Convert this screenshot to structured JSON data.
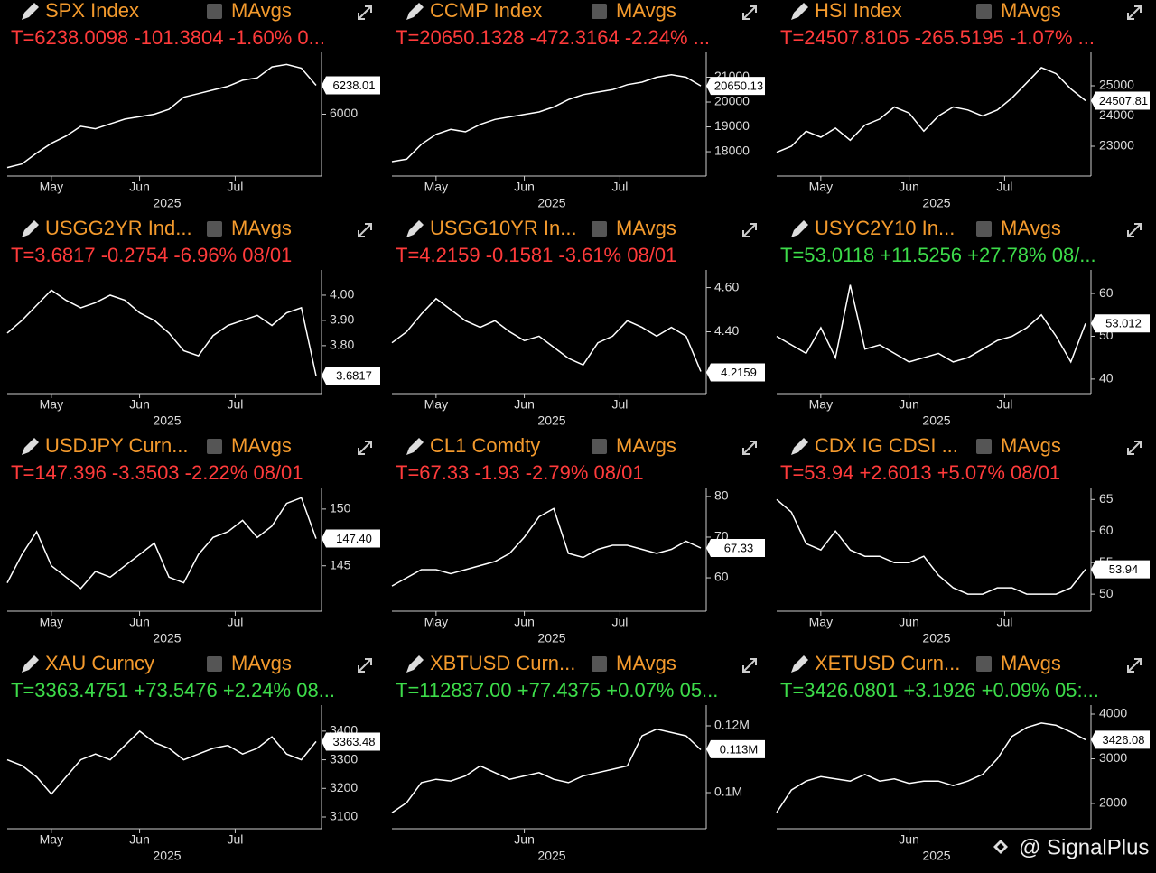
{
  "chart_data": [
    {
      "type": "line",
      "title": "SPX Index",
      "legend": "MAvgs",
      "stats": "T=6238.0098 -101.3804 -1.60% 0...",
      "stat_color": "#ff3b3b",
      "color": "#ffffff",
      "values": [
        5560,
        5590,
        5680,
        5760,
        5820,
        5900,
        5880,
        5920,
        5960,
        5980,
        6000,
        6040,
        6140,
        6170,
        6200,
        6230,
        6280,
        6300,
        6390,
        6410,
        6380,
        6238
      ],
      "ylim": [
        5490,
        6510
      ],
      "yticks": [
        6000
      ],
      "xlim": [
        0,
        21
      ],
      "xticks": [
        {
          "value": 3,
          "label": "May"
        },
        {
          "value": 9,
          "label": "Jun"
        },
        {
          "value": 15.5,
          "label": "Jul"
        }
      ],
      "x_label": "2025",
      "last_value": 6238.01
    },
    {
      "type": "line",
      "title": "CCMP Index",
      "legend": "MAvgs",
      "stats": "T=20650.1328 -472.3164 -2.24% ...",
      "stat_color": "#ff3b3b",
      "color": "#ffffff",
      "values": [
        17600,
        17700,
        18300,
        18700,
        18900,
        18800,
        19100,
        19300,
        19400,
        19500,
        19600,
        19800,
        20100,
        20300,
        20400,
        20500,
        20700,
        20800,
        21000,
        21100,
        21000,
        20650
      ],
      "ylim": [
        17020,
        22000
      ],
      "yticks": [
        18000,
        19000,
        20000,
        21000
      ],
      "xlim": [
        0,
        21
      ],
      "xticks": [
        {
          "value": 3,
          "label": "May"
        },
        {
          "value": 9,
          "label": "Jun"
        },
        {
          "value": 15.5,
          "label": "Jul"
        }
      ],
      "x_label": "2025",
      "last_value": 20650.13
    },
    {
      "type": "line",
      "title": "HSI Index",
      "legend": "MAvgs",
      "stats": "T=24507.8105 -265.5195 -1.07% ...",
      "stat_color": "#ff3b3b",
      "color": "#ffffff",
      "values": [
        22800,
        23000,
        23500,
        23300,
        23600,
        23200,
        23700,
        23900,
        24300,
        24100,
        23500,
        24000,
        24300,
        24200,
        24000,
        24200,
        24600,
        25100,
        25600,
        25400,
        24900,
        24508
      ],
      "ylim": [
        22015,
        26105
      ],
      "yticks": [
        23000,
        24000,
        25000
      ],
      "xlim": [
        0,
        21
      ],
      "xticks": [
        {
          "value": 3,
          "label": "May"
        },
        {
          "value": 9,
          "label": "Jun"
        },
        {
          "value": 15.5,
          "label": "Jul"
        }
      ],
      "x_label": "2025",
      "last_value": 24507.81
    },
    {
      "type": "line",
      "title": "USGG2YR Ind...",
      "legend": "MAvgs",
      "stats": "T=3.6817 -0.2754 -6.96% 08/01",
      "stat_color": "#ff3b3b",
      "color": "#ffffff",
      "values": [
        3.85,
        3.9,
        3.96,
        4.02,
        3.98,
        3.95,
        3.97,
        4.0,
        3.98,
        3.93,
        3.9,
        3.85,
        3.78,
        3.76,
        3.84,
        3.88,
        3.9,
        3.92,
        3.88,
        3.93,
        3.95,
        3.68
      ],
      "ylim": [
        3.61,
        4.1
      ],
      "yticks": [
        {
          "value": 3.8,
          "label": "3.80"
        },
        {
          "value": 3.9,
          "label": "3.90"
        },
        {
          "value": 4,
          "label": "4.00"
        }
      ],
      "xlim": [
        0,
        21
      ],
      "xticks": [
        {
          "value": 3,
          "label": "May"
        },
        {
          "value": 9,
          "label": "Jun"
        },
        {
          "value": 15.5,
          "label": "Jul"
        }
      ],
      "x_label": "2025",
      "last_value": 3.6817
    },
    {
      "type": "line",
      "title": "USGG10YR In...",
      "legend": "MAvgs",
      "stats": "T=4.2159 -0.1581 -3.61% 08/01",
      "stat_color": "#ff3b3b",
      "color": "#ffffff",
      "values": [
        4.35,
        4.4,
        4.48,
        4.55,
        4.5,
        4.45,
        4.42,
        4.45,
        4.4,
        4.36,
        4.38,
        4.33,
        4.28,
        4.25,
        4.35,
        4.38,
        4.45,
        4.42,
        4.38,
        4.42,
        4.38,
        4.22
      ],
      "ylim": [
        4.12,
        4.68
      ],
      "yticks": [
        {
          "value": 4.4,
          "label": "4.40"
        },
        {
          "value": 4.6,
          "label": "4.60"
        }
      ],
      "xlim": [
        0,
        21
      ],
      "xticks": [
        {
          "value": 3,
          "label": "May"
        },
        {
          "value": 9,
          "label": "Jun"
        },
        {
          "value": 15.5,
          "label": "Jul"
        }
      ],
      "x_label": "2025",
      "last_value": 4.2159
    },
    {
      "type": "line",
      "title": "USYC2Y10 In...",
      "legend": "MAvgs",
      "stats": "T=53.0118 +11.5256 +27.78% 08/...",
      "stat_color": "#3ddc4a",
      "color": "#ffffff",
      "values": [
        50,
        48,
        46,
        52,
        45,
        62,
        47,
        48,
        46,
        44,
        45,
        46,
        44,
        45,
        47,
        49,
        50,
        52,
        55,
        50,
        44,
        53
      ],
      "ylim": [
        36.6,
        65.5
      ],
      "yticks": [
        40,
        50,
        60
      ],
      "xlim": [
        0,
        21
      ],
      "xticks": [
        {
          "value": 3,
          "label": "May"
        },
        {
          "value": 9,
          "label": "Jun"
        },
        {
          "value": 15.5,
          "label": "Jul"
        }
      ],
      "x_label": "2025",
      "last_value": 53.012
    },
    {
      "type": "line",
      "title": "USDJPY Curn...",
      "legend": "MAvgs",
      "stats": "T=147.396 -3.3503 -2.22% 08/01",
      "stat_color": "#ff3b3b",
      "color": "#ffffff",
      "values": [
        143.5,
        146,
        148,
        145,
        144,
        143,
        144.5,
        144,
        145,
        146,
        147,
        144,
        143.5,
        146,
        147.5,
        148,
        149,
        147.5,
        148.5,
        150.5,
        151,
        147.4
      ],
      "ylim": [
        141,
        151.9
      ],
      "yticks": [
        145,
        150
      ],
      "xlim": [
        0,
        21
      ],
      "xticks": [
        {
          "value": 3,
          "label": "May"
        },
        {
          "value": 9,
          "label": "Jun"
        },
        {
          "value": 15.5,
          "label": "Jul"
        }
      ],
      "x_label": "2025",
      "last_value": {
        "value": 147.4,
        "label": "147.40"
      }
    },
    {
      "type": "line",
      "title": "CL1 Comdty",
      "legend": "MAvgs",
      "stats": "T=67.33 -1.93 -2.79% 08/01",
      "stat_color": "#ff3b3b",
      "color": "#ffffff",
      "values": [
        58,
        60,
        62,
        62,
        61,
        62,
        63,
        64,
        66,
        70,
        75,
        77,
        66,
        65,
        67,
        68,
        68,
        67,
        66,
        67,
        69,
        67.33
      ],
      "ylim": [
        51.8,
        82.2
      ],
      "yticks": [
        60,
        70,
        80
      ],
      "xlim": [
        0,
        21
      ],
      "xticks": [
        {
          "value": 3,
          "label": "May"
        },
        {
          "value": 9,
          "label": "Jun"
        },
        {
          "value": 15.5,
          "label": "Jul"
        }
      ],
      "x_label": "2025",
      "last_value": 67.33
    },
    {
      "type": "line",
      "title": "CDX IG CDSI ...",
      "legend": "MAvgs",
      "stats": "T=53.94 +2.6013 +5.07% 08/01",
      "stat_color": "#ff3b3b",
      "color": "#ffffff",
      "values": [
        65,
        63,
        58,
        57,
        60,
        57,
        56,
        56,
        55,
        55,
        56,
        53,
        51,
        50,
        50,
        51,
        51,
        50,
        50,
        50,
        51,
        53.94
      ],
      "ylim": [
        47.3,
        66.9
      ],
      "yticks": [
        50,
        55,
        60,
        65
      ],
      "xlim": [
        0,
        21
      ],
      "xticks": [
        {
          "value": 3,
          "label": "May"
        },
        {
          "value": 9,
          "label": "Jun"
        },
        {
          "value": 15.5,
          "label": "Jul"
        }
      ],
      "x_label": "2025",
      "last_value": 53.94
    },
    {
      "type": "line",
      "title": "XAU Curncy",
      "legend": "MAvgs",
      "stats": "T=3363.4751 +73.5476 +2.24% 08...",
      "stat_color": "#3ddc4a",
      "color": "#ffffff",
      "values": [
        3300,
        3280,
        3240,
        3180,
        3240,
        3300,
        3320,
        3300,
        3350,
        3400,
        3360,
        3340,
        3300,
        3320,
        3340,
        3350,
        3320,
        3340,
        3380,
        3320,
        3300,
        3363.48
      ],
      "ylim": [
        3059,
        3491
      ],
      "yticks": [
        3100,
        3200,
        3300,
        3400
      ],
      "xlim": [
        0,
        21
      ],
      "xticks": [
        {
          "value": 3,
          "label": "May"
        },
        {
          "value": 9,
          "label": "Jun"
        },
        {
          "value": 15.5,
          "label": "Jul"
        }
      ],
      "x_label": "2025",
      "last_value": 3363.48
    },
    {
      "type": "line",
      "title": "XBTUSD Curn...",
      "legend": "MAvgs",
      "stats": "T=112837.00 +77.4375 +0.07% 05...",
      "stat_color": "#3ddc4a",
      "color": "#ffffff",
      "values": [
        94000,
        97000,
        103000,
        104000,
        103500,
        105000,
        108000,
        106000,
        104000,
        105000,
        106000,
        104000,
        103000,
        105000,
        106000,
        107000,
        108000,
        117000,
        119000,
        118000,
        117000,
        112837
      ],
      "ylim": [
        89190,
        126216
      ],
      "yticks": [
        {
          "value": 100000,
          "label": "0.1M"
        },
        {
          "value": 120000,
          "label": "0.12M"
        }
      ],
      "xlim": [
        0,
        21
      ],
      "xticks": [
        {
          "value": 9,
          "label": "Jun"
        }
      ],
      "x_label": "2025",
      "last_value": {
        "value": 113000,
        "label": "0.113M"
      }
    },
    {
      "type": "line",
      "title": "XETUSD Curn...",
      "legend": "MAvgs",
      "stats": "T=3426.0801 +3.1926 +0.09% 05:...",
      "stat_color": "#3ddc4a",
      "color": "#ffffff",
      "values": [
        1800,
        2300,
        2500,
        2600,
        2550,
        2500,
        2650,
        2500,
        2550,
        2450,
        2500,
        2500,
        2400,
        2500,
        2650,
        3000,
        3500,
        3700,
        3800,
        3750,
        3600,
        3426
      ],
      "ylim": [
        1434,
        4202
      ],
      "yticks": [
        2000,
        3000,
        4000
      ],
      "xlim": [
        0,
        21
      ],
      "xticks": [
        {
          "value": 9,
          "label": "Jun"
        }
      ],
      "x_label": "2025",
      "last_value": 3426.08
    }
  ],
  "watermark": "@ SignalPlus"
}
